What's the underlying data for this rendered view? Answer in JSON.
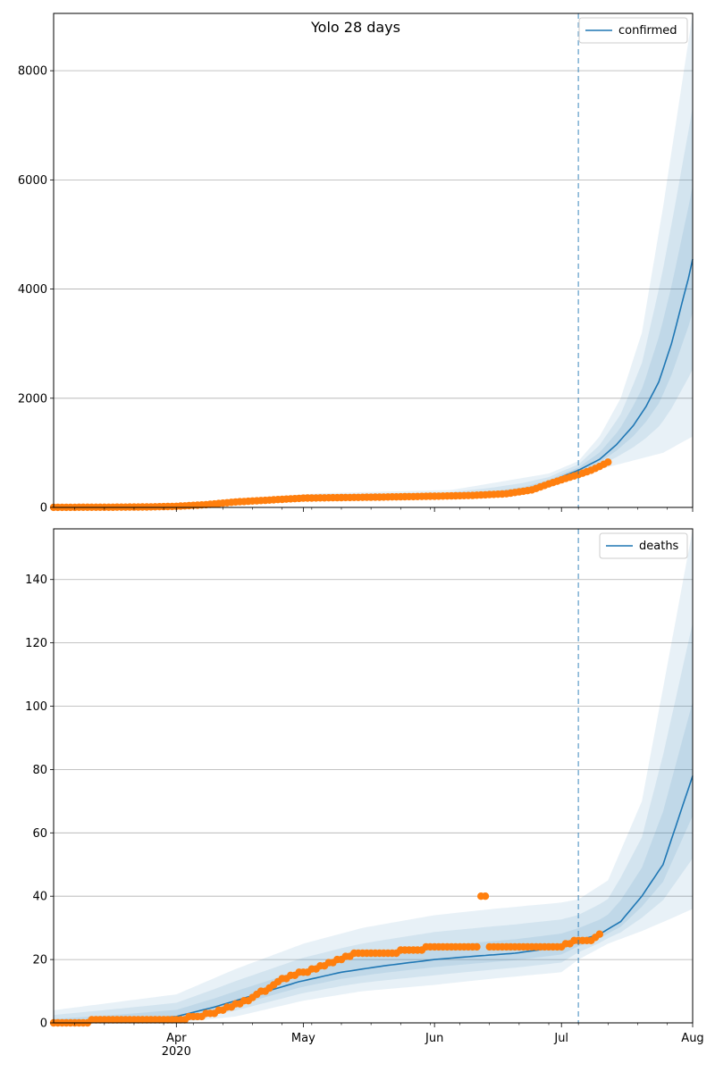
{
  "figure": {
    "title": "Yolo 28 days"
  },
  "chart_data": [
    {
      "type": "line",
      "panel": "top",
      "title": "Yolo 28 days",
      "legend": {
        "entries": [
          "confirmed"
        ],
        "placement": "top-right"
      },
      "xaxis": {
        "type": "date",
        "range": [
          "2020-03-03",
          "2020-08-01"
        ],
        "major_ticks": [
          "2020-04-01",
          "2020-05-01",
          "2020-06-01",
          "2020-07-01",
          "2020-08-01"
        ],
        "tick_labels": [],
        "minor_ticks": "weekly"
      },
      "yaxis": {
        "range": [
          0,
          9050
        ],
        "ticks": [
          0,
          2000,
          4000,
          6000,
          8000
        ],
        "tick_labels": [
          "0",
          "2000",
          "4000",
          "6000",
          "8000"
        ]
      },
      "grid": "horizontal",
      "forecast_start": "2020-07-05",
      "series": [
        {
          "name": "confirmed",
          "role": "median",
          "color": "#1f77b4",
          "x": [
            "2020-03-03",
            "2020-03-15",
            "2020-03-25",
            "2020-04-05",
            "2020-04-15",
            "2020-04-25",
            "2020-05-05",
            "2020-05-15",
            "2020-05-25",
            "2020-06-05",
            "2020-06-15",
            "2020-06-22",
            "2020-06-28",
            "2020-07-01",
            "2020-07-05",
            "2020-07-10",
            "2020-07-14",
            "2020-07-18",
            "2020-07-21",
            "2020-07-24",
            "2020-07-27",
            "2020-07-29",
            "2020-07-31",
            "2020-08-01"
          ],
          "y": [
            2,
            3,
            10,
            40,
            110,
            160,
            180,
            190,
            200,
            215,
            230,
            300,
            450,
            560,
            680,
            880,
            1150,
            1500,
            1850,
            2300,
            3000,
            3600,
            4200,
            4550
          ]
        },
        {
          "name": "confirmed interval",
          "role": "band",
          "color": "#1f77b4",
          "x": [
            "2020-03-03",
            "2020-04-05",
            "2020-05-05",
            "2020-06-05",
            "2020-06-28",
            "2020-07-05",
            "2020-07-10",
            "2020-07-15",
            "2020-07-20",
            "2020-07-25",
            "2020-08-01"
          ],
          "lower": [
            0,
            20,
            130,
            160,
            360,
            560,
            700,
            800,
            900,
            1000,
            1300
          ],
          "upper": [
            10,
            80,
            260,
            320,
            620,
            850,
            1300,
            2000,
            3200,
            5500,
            9050
          ]
        },
        {
          "name": "observed confirmed",
          "role": "points",
          "color": "#ff7f0e",
          "x": [
            "2020-03-03",
            "2020-03-15",
            "2020-03-25",
            "2020-04-01",
            "2020-04-08",
            "2020-04-15",
            "2020-04-22",
            "2020-05-01",
            "2020-05-10",
            "2020-05-20",
            "2020-06-01",
            "2020-06-10",
            "2020-06-18",
            "2020-06-24",
            "2020-06-28",
            "2020-07-02",
            "2020-07-05",
            "2020-07-08",
            "2020-07-10",
            "2020-07-12"
          ],
          "y": [
            2,
            3,
            8,
            20,
            50,
            100,
            130,
            170,
            180,
            190,
            205,
            220,
            250,
            320,
            430,
            530,
            600,
            680,
            750,
            830
          ]
        }
      ]
    },
    {
      "type": "line",
      "panel": "bottom",
      "legend": {
        "entries": [
          "deaths"
        ],
        "placement": "top-right"
      },
      "xaxis": {
        "type": "date",
        "range": [
          "2020-03-03",
          "2020-08-01"
        ],
        "major_ticks": [
          "2020-04-01",
          "2020-05-01",
          "2020-06-01",
          "2020-07-01",
          "2020-08-01"
        ],
        "tick_labels": [
          "Apr\n2020",
          "May",
          "Jun",
          "Jul",
          "Aug"
        ],
        "minor_ticks": "weekly"
      },
      "yaxis": {
        "range": [
          0,
          156
        ],
        "ticks": [
          0,
          20,
          40,
          60,
          80,
          100,
          120,
          140
        ],
        "tick_labels": [
          "0",
          "20",
          "40",
          "60",
          "80",
          "100",
          "120",
          "140"
        ]
      },
      "grid": "horizontal",
      "forecast_start": "2020-07-05",
      "series": [
        {
          "name": "deaths",
          "role": "median",
          "color": "#1f77b4",
          "x": [
            "2020-03-03",
            "2020-03-20",
            "2020-04-01",
            "2020-04-10",
            "2020-04-20",
            "2020-04-30",
            "2020-05-10",
            "2020-05-20",
            "2020-06-01",
            "2020-06-10",
            "2020-06-20",
            "2020-07-01",
            "2020-07-05",
            "2020-07-10",
            "2020-07-15",
            "2020-07-20",
            "2020-07-25",
            "2020-07-28",
            "2020-08-01"
          ],
          "y": [
            0,
            1,
            2,
            5,
            9,
            13,
            16,
            18,
            20,
            21,
            22,
            24,
            26,
            28,
            32,
            40,
            50,
            62,
            78
          ]
        },
        {
          "name": "deaths interval",
          "role": "band",
          "color": "#1f77b4",
          "x": [
            "2020-03-03",
            "2020-04-01",
            "2020-04-15",
            "2020-05-01",
            "2020-05-15",
            "2020-06-01",
            "2020-06-15",
            "2020-07-01",
            "2020-07-05",
            "2020-07-12",
            "2020-07-20",
            "2020-07-27",
            "2020-08-01"
          ],
          "lower": [
            0,
            0,
            2,
            7,
            10,
            12,
            14,
            16,
            20,
            25,
            29,
            33,
            36
          ],
          "upper": [
            4,
            9,
            17,
            25,
            30,
            34,
            36,
            38,
            39,
            45,
            70,
            120,
            156
          ]
        },
        {
          "name": "observed deaths",
          "role": "points",
          "color": "#ff7f0e",
          "x": [
            "2020-03-03",
            "2020-03-20",
            "2020-04-01",
            "2020-04-10",
            "2020-04-18",
            "2020-04-25",
            "2020-05-01",
            "2020-05-10",
            "2020-05-13",
            "2020-05-20",
            "2020-05-28",
            "2020-06-01",
            "2020-06-10",
            "2020-06-12",
            "2020-06-13",
            "2020-06-15",
            "2020-06-20",
            "2020-07-01",
            "2020-07-05",
            "2020-07-08",
            "2020-07-10"
          ],
          "y": [
            0,
            1,
            1,
            3,
            7,
            13,
            16,
            20,
            22,
            22,
            23,
            24,
            24,
            40,
            40,
            24,
            24,
            24,
            26,
            26,
            28
          ]
        }
      ]
    }
  ]
}
